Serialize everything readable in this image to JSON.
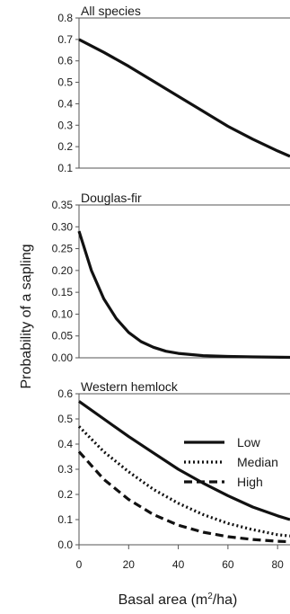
{
  "chart_data": [
    {
      "type": "line",
      "title": "All species",
      "xlim": [
        0,
        85
      ],
      "ylim": [
        0.1,
        0.8
      ],
      "yticks": [
        0.1,
        0.2,
        0.3,
        0.4,
        0.5,
        0.6,
        0.7,
        0.8
      ],
      "ytick_labels": [
        "0.1",
        "0.2",
        "0.3",
        "0.4",
        "0.5",
        "0.6",
        "0.7",
        "0.8"
      ],
      "series": [
        {
          "style": "solid",
          "x": [
            0,
            10,
            20,
            30,
            40,
            50,
            60,
            70,
            80,
            85
          ],
          "y": [
            0.7,
            0.64,
            0.575,
            0.505,
            0.435,
            0.365,
            0.295,
            0.235,
            0.18,
            0.155
          ]
        }
      ]
    },
    {
      "type": "line",
      "title": "Douglas-fir",
      "xlim": [
        0,
        85
      ],
      "ylim": [
        0,
        0.35
      ],
      "yticks": [
        0,
        0.05,
        0.1,
        0.15,
        0.2,
        0.25,
        0.3,
        0.35
      ],
      "ytick_labels": [
        "0.00",
        "0.05",
        "0.10",
        "0.15",
        "0.20",
        "0.25",
        "0.30",
        "0.35"
      ],
      "series": [
        {
          "style": "solid",
          "x": [
            0,
            5,
            10,
            15,
            20,
            25,
            30,
            35,
            40,
            50,
            60,
            70,
            85
          ],
          "y": [
            0.29,
            0.2,
            0.135,
            0.09,
            0.058,
            0.037,
            0.024,
            0.015,
            0.01,
            0.005,
            0.003,
            0.002,
            0.001
          ]
        }
      ]
    },
    {
      "type": "line",
      "title": "Western hemlock",
      "xlim": [
        0,
        85
      ],
      "ylim": [
        0,
        0.6
      ],
      "yticks": [
        0,
        0.1,
        0.2,
        0.3,
        0.4,
        0.5,
        0.6
      ],
      "ytick_labels": [
        "0.0",
        "0.1",
        "0.2",
        "0.3",
        "0.4",
        "0.5",
        "0.6"
      ],
      "xticks": [
        0,
        20,
        40,
        60,
        80
      ],
      "xtick_labels": [
        "0",
        "20",
        "40",
        "60",
        "80"
      ],
      "legend": "right",
      "series": [
        {
          "name": "Low",
          "style": "solid",
          "x": [
            0,
            10,
            20,
            30,
            40,
            50,
            60,
            70,
            80,
            85
          ],
          "y": [
            0.57,
            0.5,
            0.43,
            0.365,
            0.3,
            0.245,
            0.195,
            0.15,
            0.115,
            0.1
          ]
        },
        {
          "name": "Median",
          "style": "dotted",
          "x": [
            0,
            10,
            20,
            30,
            40,
            50,
            60,
            70,
            80,
            85
          ],
          "y": [
            0.47,
            0.37,
            0.29,
            0.22,
            0.165,
            0.12,
            0.085,
            0.06,
            0.04,
            0.035
          ]
        },
        {
          "name": "High",
          "style": "dashed",
          "x": [
            0,
            10,
            20,
            30,
            40,
            50,
            60,
            70,
            80,
            85
          ],
          "y": [
            0.37,
            0.26,
            0.18,
            0.12,
            0.078,
            0.05,
            0.032,
            0.021,
            0.014,
            0.012
          ]
        }
      ]
    }
  ],
  "ylabel": "Probability of a sapling",
  "xlabel_main": "Basal area (m",
  "xlabel_sup": "2",
  "xlabel_tail": "/ha)"
}
